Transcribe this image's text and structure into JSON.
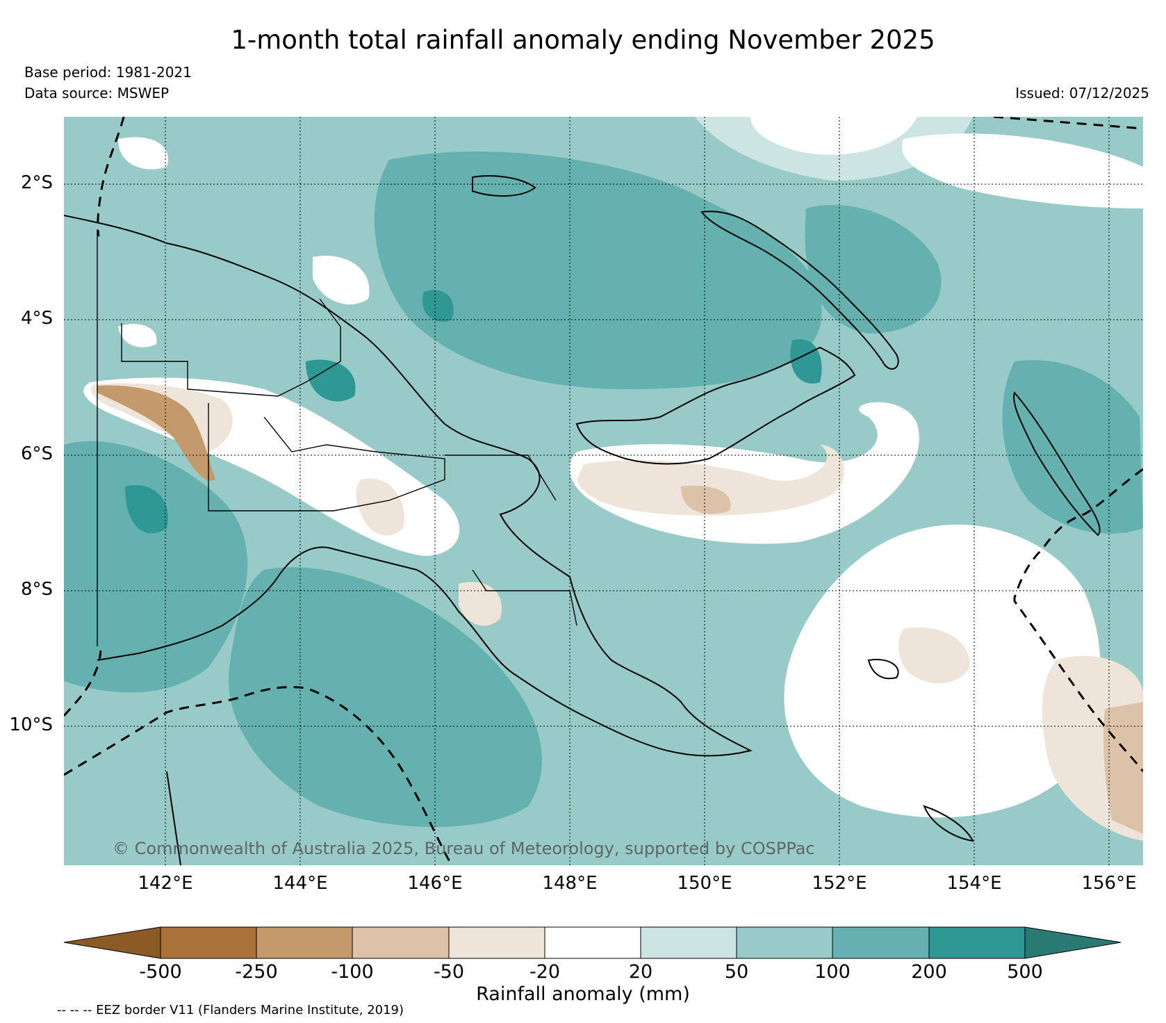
{
  "title": "1-month total rainfall anomaly ending November 2025",
  "base_period": "Base period: 1981-2021",
  "data_source": "Data source: MSWEP",
  "issued": "Issued: 07/12/2025",
  "copyright": "© Commonwealth of Australia 2025, Bureau of Meteorology, supported by COSPPac",
  "lat_labels": [
    "2°S",
    "4°S",
    "6°S",
    "8°S",
    "10°S"
  ],
  "lon_labels": [
    "142°E",
    "144°E",
    "146°E",
    "148°E",
    "150°E",
    "152°E",
    "154°E",
    "156°E"
  ],
  "colorbar": {
    "title": "Rainfall anomaly (mm)",
    "ticks": [
      "-500",
      "-250",
      "-100",
      "-50",
      "-20",
      "20",
      "50",
      "100",
      "200",
      "500"
    ],
    "colors": {
      "under": "#8c5a24",
      "c1": "#a87138",
      "c2": "#c49a6c",
      "c3": "#dbc2a8",
      "c4": "#efe4da",
      "c5": "#ffffff",
      "c6": "#cce5e3",
      "c7": "#98cbc8",
      "c8": "#64b1b0",
      "c9": "#2f9794",
      "over": "#2a7a74"
    }
  },
  "footnote": "-- -- -- EEZ border V11 (Flanders Marine Institute, 2019)"
}
